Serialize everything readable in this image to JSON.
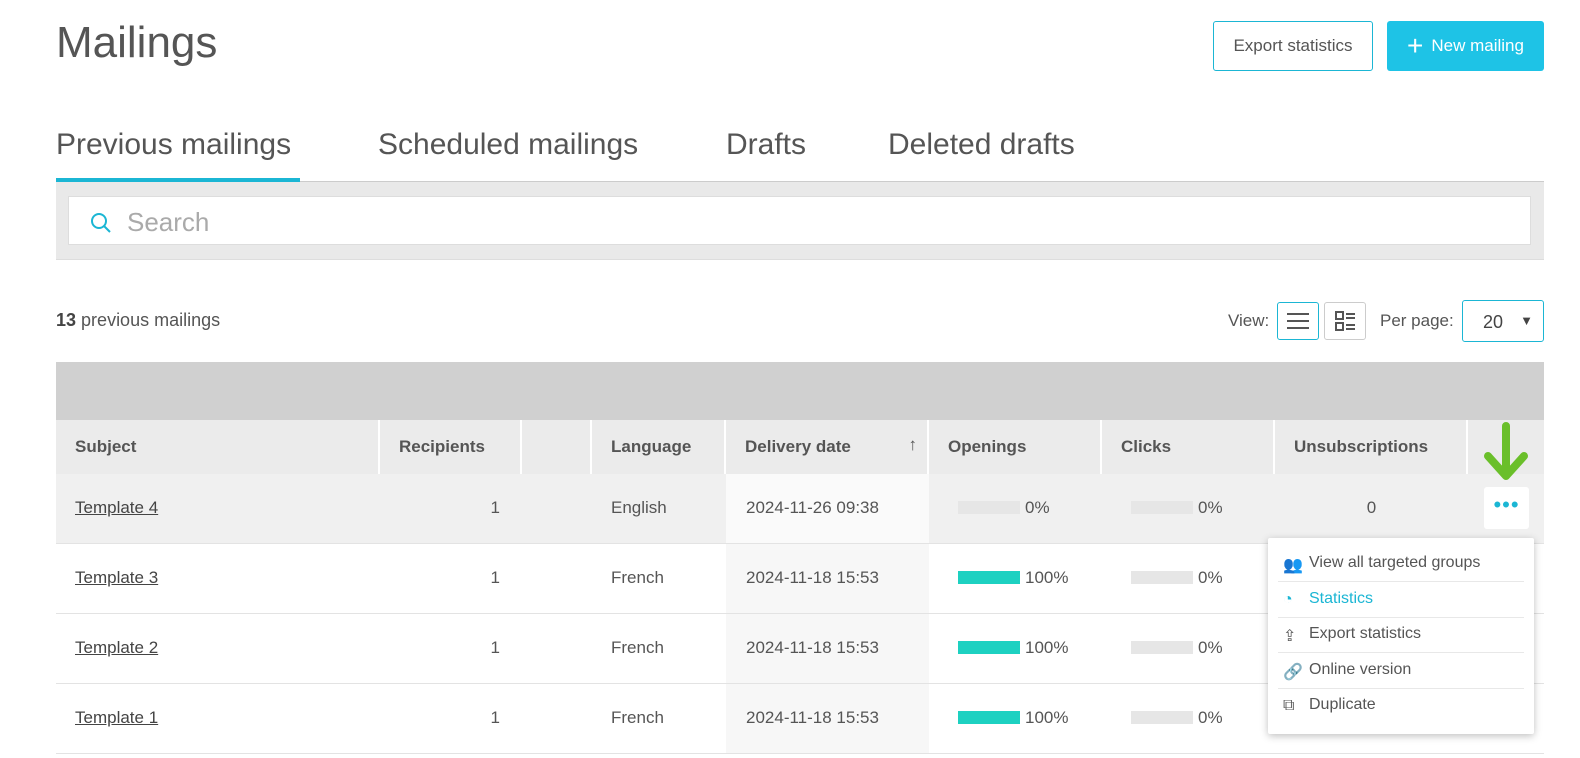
{
  "header": {
    "title": "Mailings",
    "export_label": "Export statistics",
    "new_label": "New mailing"
  },
  "tabs": [
    {
      "label": "Previous mailings",
      "active": true
    },
    {
      "label": "Scheduled mailings"
    },
    {
      "label": "Drafts"
    },
    {
      "label": "Deleted drafts"
    }
  ],
  "search": {
    "placeholder": "Search"
  },
  "summary": {
    "count": "13",
    "text": "previous mailings"
  },
  "view": {
    "label": "View:",
    "per_page_label": "Per page:",
    "per_page": "20"
  },
  "columns": [
    "Subject",
    "Recipients",
    "",
    "Language",
    "Delivery date",
    "Openings",
    "Clicks",
    "Unsubscriptions"
  ],
  "rows": [
    {
      "subject": "Template 4",
      "recipients": "1",
      "language": "English",
      "date": "2024-11-26 09:38",
      "openings": "0%",
      "openings_value": 0,
      "clicks": "0%",
      "clicks_value": 0,
      "unsubs": "0"
    },
    {
      "subject": "Template 3",
      "recipients": "1",
      "language": "French",
      "date": "2024-11-18 15:53",
      "openings": "100%",
      "openings_value": 100,
      "clicks": "0%",
      "clicks_value": 0
    },
    {
      "subject": "Template 2",
      "recipients": "1",
      "language": "French",
      "date": "2024-11-18 15:53",
      "openings": "100%",
      "openings_value": 100,
      "clicks": "0%",
      "clicks_value": 0
    },
    {
      "subject": "Template 1",
      "recipients": "1",
      "language": "French",
      "date": "2024-11-18 15:53",
      "openings": "100%",
      "openings_value": 100,
      "clicks": "0%",
      "clicks_value": 0
    }
  ],
  "menu": [
    {
      "label": "View all targeted groups",
      "icon": "users-icon"
    },
    {
      "label": "Statistics",
      "icon": "pie-chart-icon",
      "hover": true
    },
    {
      "label": "Export statistics",
      "icon": "export-icon"
    },
    {
      "label": "Online version",
      "icon": "link-icon"
    },
    {
      "label": "Duplicate",
      "icon": "duplicate-icon"
    }
  ],
  "colors": {
    "accent": "#1bb6d4",
    "bar_fill": "#1dd1c1",
    "arrow": "#6abf2a"
  }
}
